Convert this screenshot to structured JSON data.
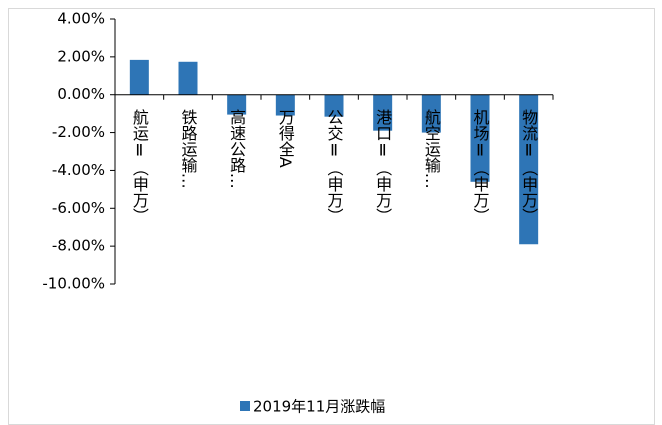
{
  "chart_data": {
    "type": "bar",
    "categories": [
      "航运Ⅱ（申万）",
      "铁路运输…",
      "高速公路…",
      "万得全A",
      "公交Ⅱ（申万）",
      "港口Ⅱ（申万）",
      "航空运输…",
      "机场Ⅱ（申万）",
      "物流Ⅱ（申万）"
    ],
    "series": [
      {
        "name": "2019年11月涨跌幅",
        "color": "#2e75b6",
        "values": [
          1.84,
          1.74,
          -1.05,
          -1.1,
          -1.16,
          -1.9,
          -2.0,
          -4.6,
          -7.9
        ]
      }
    ],
    "ylim": [
      -10,
      4
    ],
    "yticks": [
      {
        "value": -10,
        "label": "-10.00%"
      },
      {
        "value": -8,
        "label": "-8.00%"
      },
      {
        "value": -6,
        "label": "-6.00%"
      },
      {
        "value": -4,
        "label": "-4.00%"
      },
      {
        "value": -2,
        "label": "-2.00%"
      },
      {
        "value": 0,
        "label": "0.00%"
      },
      {
        "value": 2,
        "label": "2.00%"
      },
      {
        "value": 4,
        "label": "4.00%"
      }
    ],
    "legend": "bottom"
  }
}
